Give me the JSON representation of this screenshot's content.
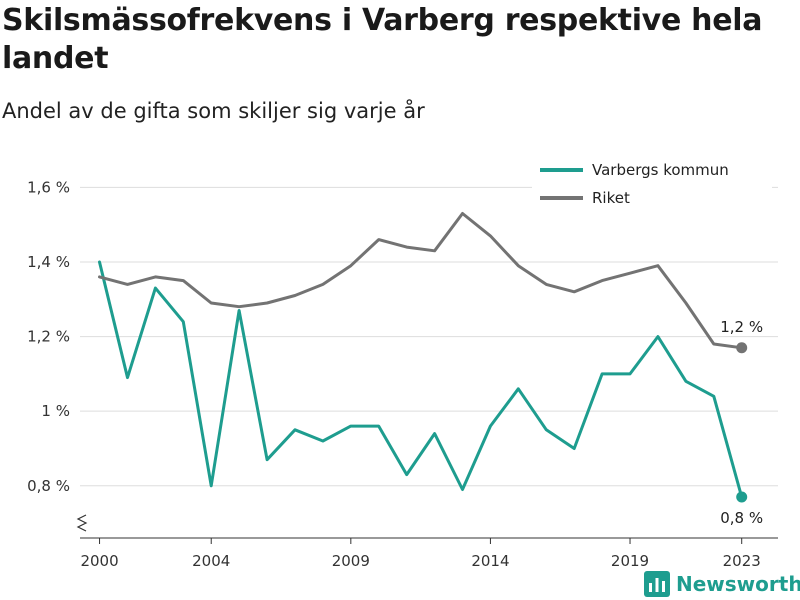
{
  "title": "Skilsmässofrekvens i Varberg respektive hela landet",
  "subtitle": "Andel av de gifta som skiljer sig varje år",
  "brand": {
    "name": "Newsworthy",
    "color": "#1e9d8f"
  },
  "chart_data": {
    "type": "line",
    "x": [
      2000,
      2001,
      2002,
      2003,
      2004,
      2005,
      2006,
      2007,
      2008,
      2009,
      2010,
      2011,
      2012,
      2013,
      2014,
      2015,
      2016,
      2017,
      2018,
      2019,
      2020,
      2021,
      2022,
      2023
    ],
    "series": [
      {
        "name": "Varbergs kommun",
        "color": "#1e9d8f",
        "values": [
          1.4,
          1.09,
          1.33,
          1.24,
          0.8,
          1.27,
          0.87,
          0.95,
          0.92,
          0.96,
          0.96,
          0.83,
          0.94,
          0.79,
          0.96,
          1.06,
          0.95,
          0.9,
          1.1,
          1.1,
          1.2,
          1.08,
          1.04,
          0.77
        ],
        "end_label": "0,8 %"
      },
      {
        "name": "Riket",
        "color": "#737373",
        "values": [
          1.36,
          1.34,
          1.36,
          1.35,
          1.29,
          1.28,
          1.29,
          1.31,
          1.34,
          1.39,
          1.46,
          1.44,
          1.43,
          1.53,
          1.47,
          1.39,
          1.34,
          1.32,
          1.35,
          1.37,
          1.39,
          1.29,
          1.18,
          1.17
        ],
        "end_label": "1,2 %"
      }
    ],
    "y_ticks": [
      {
        "value": 0.8,
        "label": "0,8 %"
      },
      {
        "value": 1.0,
        "label": "1 %"
      },
      {
        "value": 1.2,
        "label": "1,2 %"
      },
      {
        "value": 1.4,
        "label": "1,4 %"
      },
      {
        "value": 1.6,
        "label": "1,6 %"
      }
    ],
    "x_ticks": [
      {
        "value": 2000,
        "label": "2000"
      },
      {
        "value": 2004,
        "label": "2004"
      },
      {
        "value": 2009,
        "label": "2009"
      },
      {
        "value": 2014,
        "label": "2014"
      },
      {
        "value": 2019,
        "label": "2019"
      },
      {
        "value": 2023,
        "label": "2023"
      }
    ],
    "xlim": [
      1999.3,
      2024.3
    ],
    "ylim": [
      0.66,
      1.66
    ],
    "y_axis_break": true,
    "grid": "horizontal",
    "legend": "top-right"
  }
}
